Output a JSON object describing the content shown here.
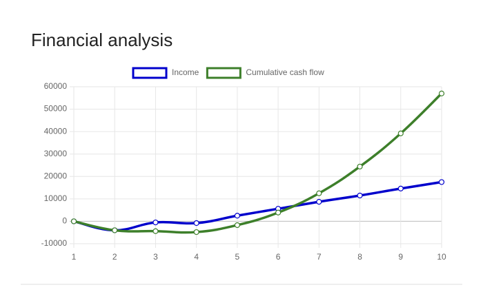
{
  "chart_data": {
    "type": "line",
    "title": "Financial analysis",
    "x": [
      1,
      2,
      3,
      4,
      5,
      6,
      7,
      8,
      9,
      10
    ],
    "series": [
      {
        "name": "Income",
        "color": "#0000cc",
        "values": [
          0,
          -4000,
          -500,
          -800,
          2500,
          5600,
          8700,
          11500,
          14600,
          17500
        ]
      },
      {
        "name": "Cumulative cash flow",
        "color": "#3d7f2a",
        "values": [
          0,
          -4000,
          -4400,
          -4800,
          -1700,
          3900,
          12500,
          24400,
          39200,
          57000
        ]
      }
    ],
    "xlim": [
      1,
      10
    ],
    "xticks": [
      1,
      2,
      3,
      4,
      5,
      6,
      7,
      8,
      9,
      10
    ],
    "ylim": [
      -10000,
      60000
    ],
    "yticks": [
      -10000,
      0,
      10000,
      20000,
      30000,
      40000,
      50000,
      60000
    ],
    "grid": true,
    "legend": "top"
  }
}
